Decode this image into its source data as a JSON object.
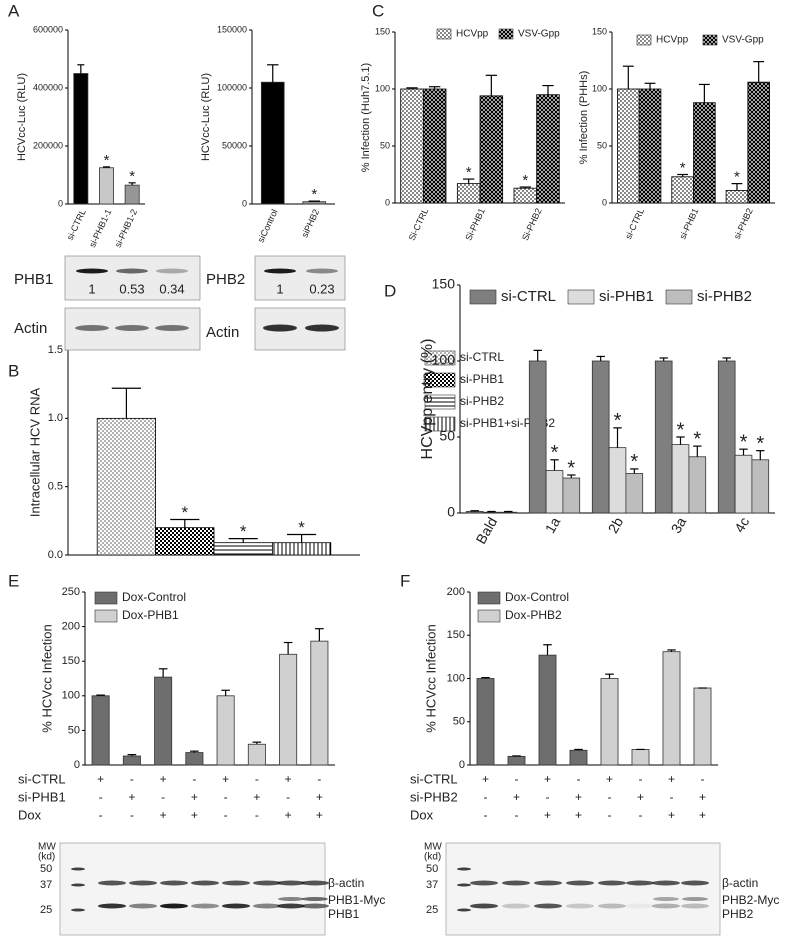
{
  "panel_labels": [
    "A",
    "B",
    "C",
    "D",
    "E",
    "F"
  ],
  "chart_data": [
    {
      "type": "bar",
      "ylabel": "HCVcc-Luc (RLU)",
      "categories": [
        "si-CTRL",
        "si-PHB1-1",
        "si-PHB1-2"
      ],
      "values": [
        450000,
        125000,
        65000
      ],
      "errors": [
        30000,
        3000,
        8000
      ],
      "stars": [
        null,
        "*",
        "*"
      ],
      "colors": [
        "#000000",
        "#c8c8c8",
        "#969696"
      ],
      "ylim": [
        0,
        600000
      ],
      "yticks": [
        0,
        200000,
        400000,
        600000
      ]
    },
    {
      "type": "bar",
      "ylabel": "HCVcc-Luc (RLU)",
      "categories": [
        "siControl",
        "siPHB2"
      ],
      "values": [
        105000,
        2000
      ],
      "errors": [
        15000,
        500
      ],
      "stars": [
        null,
        "*"
      ],
      "colors": [
        "#000000",
        "#969696"
      ],
      "ylim": [
        0,
        150000
      ],
      "yticks": [
        0,
        50000,
        100000,
        150000
      ]
    },
    {
      "type": "bar",
      "ylabel": "% Infection (Huh7.5.1)",
      "categories": [
        "Si-CTRL",
        "Si-PHB1",
        "Si-PHB2"
      ],
      "series": [
        {
          "name": "HCVpp",
          "color": "#888888",
          "pattern": "checker",
          "values": [
            100,
            17,
            13
          ],
          "errors": [
            1,
            4,
            1
          ],
          "stars": [
            null,
            "*",
            "*"
          ]
        },
        {
          "name": "VSV-Gpp",
          "color": "#000000",
          "pattern": "crosshatch",
          "values": [
            100,
            94,
            95
          ],
          "errors": [
            2,
            18,
            8
          ],
          "stars": [
            null,
            null,
            null
          ]
        }
      ],
      "ylim": [
        0,
        150
      ],
      "yticks": [
        0,
        50,
        100,
        150
      ],
      "legend": "upper center"
    },
    {
      "type": "bar",
      "ylabel": "% Infection (PHHs)",
      "categories": [
        "si-CTRL",
        "si-PHB1",
        "si-PHB2"
      ],
      "series": [
        {
          "name": "HCVpp",
          "color": "#888888",
          "pattern": "checker",
          "values": [
            100,
            23,
            11
          ],
          "errors": [
            20,
            2,
            6
          ],
          "stars": [
            null,
            "*",
            "*"
          ]
        },
        {
          "name": "VSV-Gpp",
          "color": "#000000",
          "pattern": "crosshatch",
          "values": [
            100,
            88,
            106
          ],
          "errors": [
            5,
            16,
            18
          ],
          "stars": [
            null,
            null,
            null
          ]
        }
      ],
      "ylim": [
        0,
        150
      ],
      "yticks": [
        0,
        50,
        100,
        150
      ],
      "legend": "upper center"
    },
    {
      "type": "bar",
      "ylabel": "Intracellular HCV RNA",
      "categories": [
        null
      ],
      "series": [
        {
          "name": "si-CTRL",
          "color": "#555555",
          "pattern": "dots",
          "values": [
            1
          ],
          "errors": [
            0.22
          ],
          "stars": [
            null
          ]
        },
        {
          "name": "si-PHB1",
          "color": "#000000",
          "pattern": "checker",
          "values": [
            0.2
          ],
          "errors": [
            0.06
          ],
          "stars": [
            "*"
          ]
        },
        {
          "name": "si-PHB2",
          "color": "#000000",
          "pattern": "horizontal",
          "values": [
            0.09
          ],
          "errors": [
            0.03
          ],
          "stars": [
            "*"
          ]
        },
        {
          "name": "si-PHB1+si-PHB2",
          "color": "#000000",
          "pattern": "vertical",
          "values": [
            0.09
          ],
          "errors": [
            0.06
          ],
          "stars": [
            "*"
          ]
        }
      ],
      "ylim": [
        0,
        1.5
      ],
      "yticks": [
        {
          "value": 0,
          "label": "0.0"
        },
        {
          "value": 0.5,
          "label": "0.5"
        },
        {
          "value": 1,
          "label": "1.0"
        },
        {
          "value": 1.5,
          "label": "1.5"
        }
      ],
      "legend": "right"
    },
    {
      "type": "bar",
      "ylabel": "HCVpp entry (%)",
      "categories": [
        "Bald",
        "1a",
        "2b",
        "3a",
        "4c"
      ],
      "series": [
        {
          "name": "si-CTRL",
          "color": "#7f7f7f",
          "values": [
            1,
            100,
            100,
            100,
            100
          ],
          "errors": [
            0.5,
            7,
            3,
            2,
            2
          ],
          "stars": [
            null,
            null,
            null,
            null,
            null
          ]
        },
        {
          "name": "si-PHB1",
          "color": "#dcdcdc",
          "values": [
            0.5,
            28,
            43,
            45,
            38
          ],
          "errors": [
            0.5,
            7,
            13,
            5,
            4
          ],
          "stars": [
            null,
            "*",
            "*",
            "*",
            "*"
          ]
        },
        {
          "name": "si-PHB2",
          "color": "#bdbdbd",
          "values": [
            0.5,
            23,
            26,
            37,
            35
          ],
          "errors": [
            0.5,
            2,
            3,
            7,
            6
          ],
          "stars": [
            null,
            "*",
            "*",
            "*",
            "*"
          ]
        }
      ],
      "ylim": [
        0,
        150
      ],
      "yticks": [
        0,
        50,
        100,
        150
      ],
      "legend": "upper center"
    },
    {
      "type": "bar",
      "ylabel": "% HCVcc Infection",
      "categories": [
        null,
        null,
        null,
        null,
        null,
        null,
        null,
        null
      ],
      "series": [
        {
          "name": "Dox-Control",
          "color": "#6e6e6e",
          "values": [
            100,
            13,
            127,
            18,
            null,
            null,
            null,
            null
          ],
          "errors": [
            1,
            2,
            12,
            2,
            null,
            null,
            null,
            null
          ]
        },
        {
          "name": "Dox-PHB1",
          "color": "#d0d0d0",
          "values": [
            null,
            null,
            null,
            null,
            100,
            30,
            160,
            179
          ],
          "errors": [
            null,
            null,
            null,
            null,
            8,
            3,
            17,
            18
          ]
        }
      ],
      "ylim": [
        0,
        250
      ],
      "yticks": [
        0,
        50,
        100,
        150,
        200,
        250
      ],
      "legend": "upper left",
      "rows": [
        {
          "label": "si-CTRL",
          "signs": [
            "+",
            "-",
            "+",
            "-",
            "+",
            "-",
            "+",
            "-"
          ]
        },
        {
          "label": "si-PHB1",
          "signs": [
            "-",
            "+",
            "-",
            "+",
            "-",
            "+",
            "-",
            "+"
          ]
        },
        {
          "label": "Dox",
          "signs": [
            "-",
            "-",
            "+",
            "+",
            "-",
            "-",
            "+",
            "+"
          ]
        }
      ]
    },
    {
      "type": "bar",
      "ylabel": "% HCVcc Infection",
      "categories": [
        null,
        null,
        null,
        null,
        null,
        null,
        null,
        null
      ],
      "series": [
        {
          "name": "Dox-Control",
          "color": "#6e6e6e",
          "values": [
            100,
            10,
            127,
            17,
            null,
            null,
            null,
            null
          ],
          "errors": [
            1,
            0.5,
            12,
            1,
            null,
            null,
            null,
            null
          ]
        },
        {
          "name": "Dox-PHB2",
          "color": "#d0d0d0",
          "values": [
            null,
            null,
            null,
            null,
            100,
            18,
            131,
            89
          ],
          "errors": [
            null,
            null,
            null,
            null,
            5,
            0,
            2,
            0
          ]
        }
      ],
      "ylim": [
        0,
        200
      ],
      "yticks": [
        0,
        50,
        100,
        150,
        200
      ],
      "legend": "upper left",
      "rows": [
        {
          "label": "si-CTRL",
          "signs": [
            "+",
            "-",
            "+",
            "-",
            "+",
            "-",
            "+",
            "-"
          ]
        },
        {
          "label": "si-PHB2",
          "signs": [
            "-",
            "+",
            "-",
            "+",
            "-",
            "+",
            "-",
            "+"
          ]
        },
        {
          "label": "Dox",
          "signs": [
            "-",
            "-",
            "+",
            "+",
            "-",
            "-",
            "+",
            "+"
          ]
        }
      ]
    }
  ],
  "blots": [
    {
      "rows": [
        {
          "label": "PHB1",
          "quant": [
            1,
            0.53,
            0.34
          ]
        },
        {
          "label": "Actin"
        }
      ]
    },
    {
      "rows": [
        {
          "label": "PHB2",
          "quant": [
            1,
            0.23
          ]
        },
        {
          "label": "Actin"
        }
      ]
    },
    {
      "mw_label": [
        "MW",
        "(kd)"
      ],
      "markers": [
        50,
        37,
        25
      ],
      "bands": [
        "β-actin",
        "PHB1-Myc",
        "PHB1"
      ]
    },
    {
      "mw_label": [
        "MW",
        "(kd)"
      ],
      "markers": [
        50,
        37,
        25
      ],
      "bands": [
        "β-actin",
        "PHB2-Myc",
        "PHB2"
      ]
    }
  ]
}
